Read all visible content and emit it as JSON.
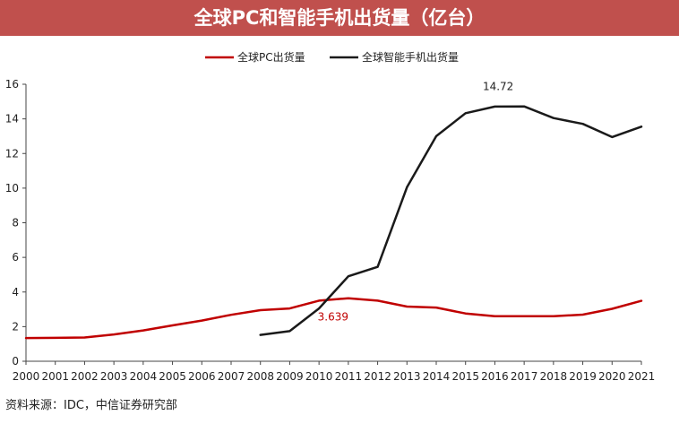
{
  "title": "全球PC和智能手机出货量（亿台）",
  "source": "资料来源：IDC，中信证券研究部",
  "chart_data": {
    "type": "line",
    "x": [
      2000,
      2001,
      2002,
      2003,
      2004,
      2005,
      2006,
      2007,
      2008,
      2009,
      2010,
      2011,
      2012,
      2013,
      2014,
      2015,
      2016,
      2017,
      2018,
      2019,
      2020,
      2021
    ],
    "ylim": [
      0,
      16
    ],
    "yticks": [
      0,
      2,
      4,
      6,
      8,
      10,
      12,
      14,
      16
    ],
    "legend_position": "top-center",
    "grid": false,
    "series": [
      {
        "name": "全球PC出货量",
        "color": "#c00000",
        "values": [
          1.34,
          1.35,
          1.37,
          1.55,
          1.78,
          2.07,
          2.35,
          2.68,
          2.95,
          3.05,
          3.5,
          3.639,
          3.5,
          3.16,
          3.1,
          2.76,
          2.6,
          2.6,
          2.6,
          2.69,
          3.03,
          3.49
        ]
      },
      {
        "name": "全球智能手机出货量",
        "color": "#1a1a1a",
        "values": [
          null,
          null,
          null,
          null,
          null,
          null,
          null,
          null,
          1.52,
          1.74,
          3.05,
          4.91,
          5.45,
          10.05,
          13.0,
          14.33,
          14.71,
          14.72,
          14.05,
          13.71,
          12.95,
          13.55
        ]
      }
    ],
    "annotations": [
      {
        "text": "14.72",
        "series": 1,
        "x": 2017
      },
      {
        "text": "3.639",
        "series": 0,
        "x": 2011
      }
    ]
  }
}
